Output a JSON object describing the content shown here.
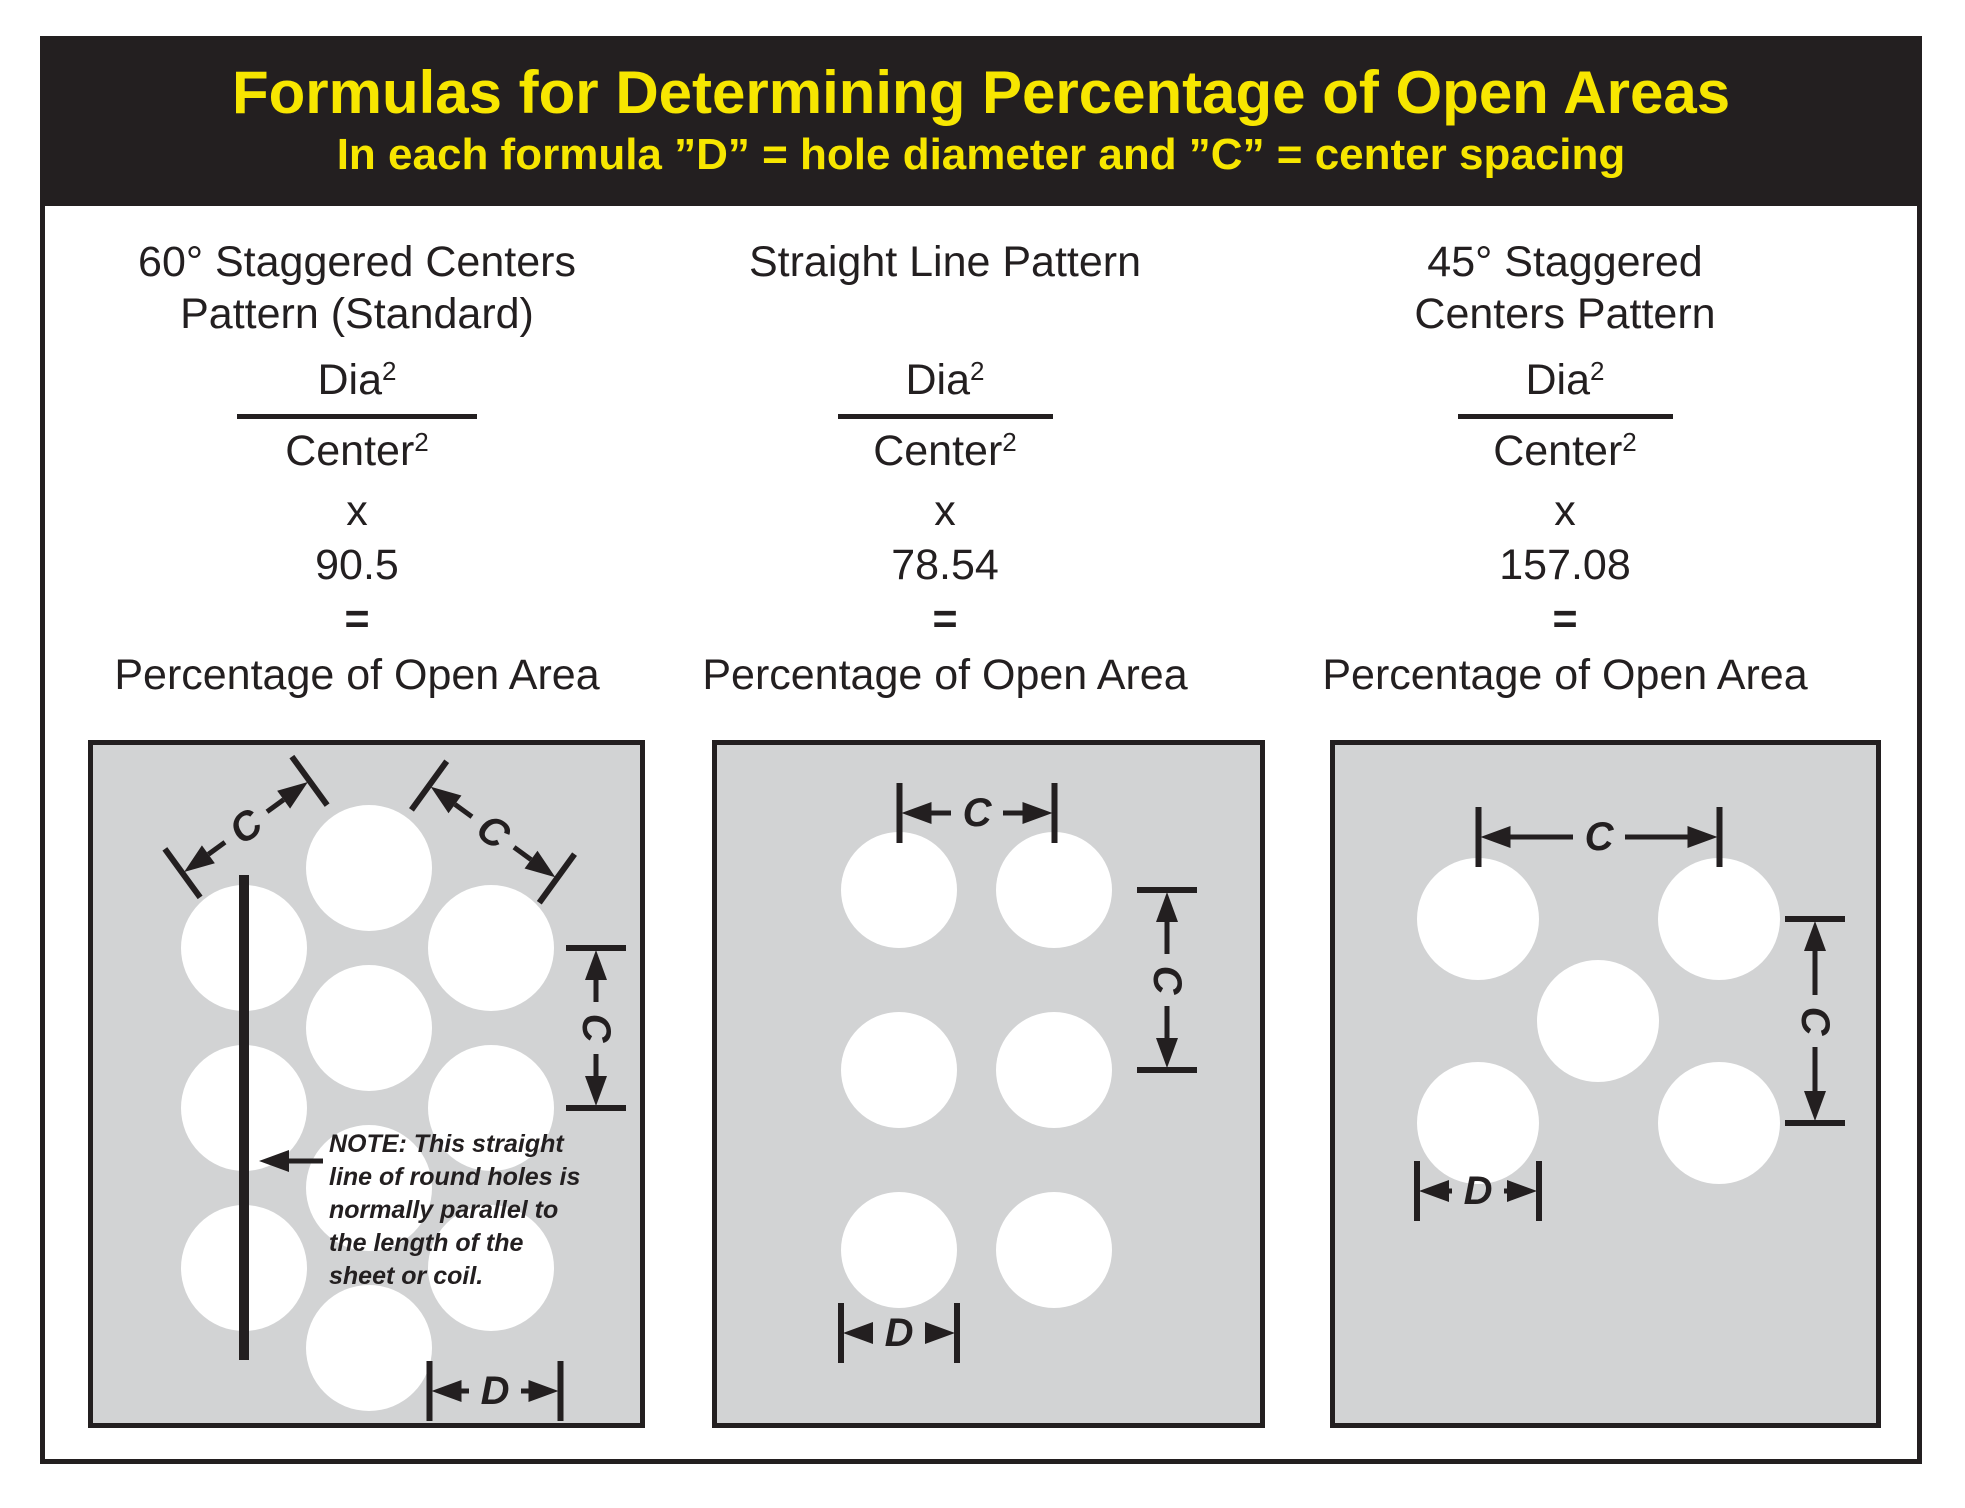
{
  "colors": {
    "frame_black": "#231f20",
    "header_bg": "#231f20",
    "header_text": "#f7e600",
    "panel_gray": "#d2d3d4",
    "hole_white": "#ffffff"
  },
  "header": {
    "title": "Formulas for Determining Percentage of Open Areas",
    "subtitle": "In each formula ”D” = hole diameter and ”C” = center spacing"
  },
  "columns": [
    {
      "title_line1": "60° Staggered Centers",
      "title_line2": "Pattern (Standard)",
      "numerator_base": "Dia",
      "numerator_exp": "2",
      "denominator_base": "Center",
      "denominator_exp": "2",
      "multiply_sign": "x",
      "multiplier": "90.5",
      "equals_sign": "=",
      "result": "Percentage of Open Area"
    },
    {
      "title_line1": "",
      "title_line2": "Straight Line Pattern",
      "numerator_base": "Dia",
      "numerator_exp": "2",
      "denominator_base": "Center",
      "denominator_exp": "2",
      "multiply_sign": "x",
      "multiplier": "78.54",
      "equals_sign": "=",
      "result": "Percentage of Open Area"
    },
    {
      "title_line1": "45° Staggered",
      "title_line2": "Centers Pattern",
      "numerator_base": "Dia",
      "numerator_exp": "2",
      "denominator_base": "Center",
      "denominator_exp": "2",
      "multiply_sign": "x",
      "multiplier": "157.08",
      "equals_sign": "=",
      "result": "Percentage of Open Area"
    }
  ],
  "diagrams": {
    "dimension_labels": {
      "center_spacing": "C",
      "hole_diameter": "D"
    },
    "note_lines": [
      "NOTE: This straight",
      "line of round holes is",
      "normally parallel to",
      "the length of the",
      "sheet or coil."
    ]
  }
}
